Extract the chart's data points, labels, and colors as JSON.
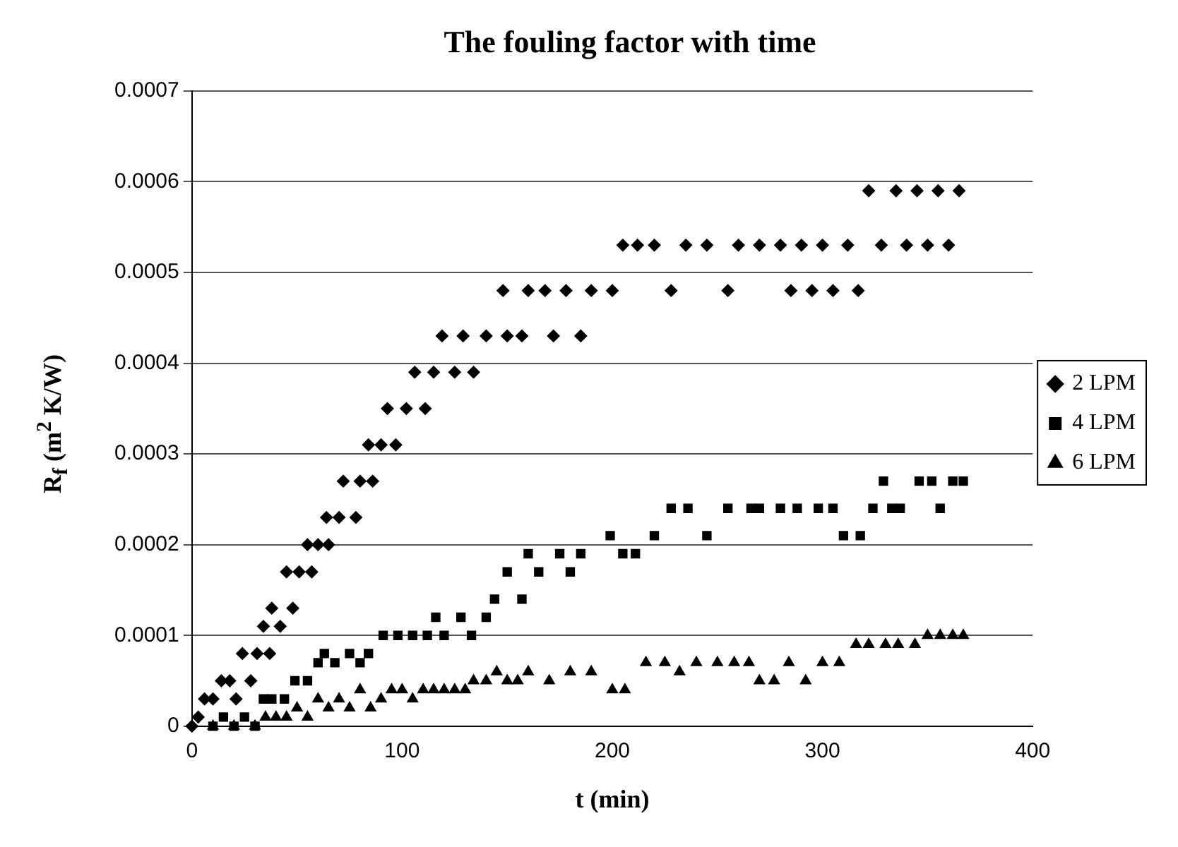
{
  "chart_data": {
    "type": "scatter",
    "title": "The fouling factor with time",
    "xlabel": "t (min)",
    "ylabel": "R$_{f}$ (m$^{2}$ K/W)",
    "xlim": [
      0,
      400
    ],
    "xticks": [
      0,
      100,
      200,
      300,
      400
    ],
    "ylim": [
      0,
      0.0007
    ],
    "yticks": [
      0,
      0.0001,
      0.0002,
      0.0003,
      0.0004,
      0.0005,
      0.0006,
      0.0007
    ],
    "grid": "y",
    "legend": "right",
    "series": [
      {
        "name": "2 LPM",
        "color": "#000000",
        "marker": "diamond",
        "x": [
          0,
          3,
          6,
          10,
          14,
          18,
          21,
          24,
          28,
          31,
          34,
          37,
          38,
          42,
          45,
          48,
          51,
          55,
          57,
          60,
          64,
          65,
          70,
          72,
          78,
          80,
          84,
          86,
          90,
          93,
          97,
          102,
          106,
          111,
          115,
          119,
          125,
          129,
          134,
          140,
          148,
          150,
          157,
          160,
          168,
          172,
          178,
          185,
          190,
          200,
          205,
          212,
          220,
          228,
          235,
          245,
          255,
          260,
          270,
          280,
          285,
          290,
          295,
          300,
          305,
          312,
          317,
          322,
          328,
          335,
          340,
          345,
          350,
          355,
          360,
          365
        ],
        "values": [
          0,
          1e-05,
          3e-05,
          3e-05,
          5e-05,
          5e-05,
          3e-05,
          8e-05,
          5e-05,
          8e-05,
          0.00011,
          8e-05,
          0.00013,
          0.00011,
          0.00017,
          0.00013,
          0.00017,
          0.0002,
          0.00017,
          0.0002,
          0.00023,
          0.0002,
          0.00023,
          0.00027,
          0.00023,
          0.00027,
          0.00031,
          0.00027,
          0.00031,
          0.00035,
          0.00031,
          0.00035,
          0.00039,
          0.00035,
          0.00039,
          0.00043,
          0.00039,
          0.00043,
          0.00039,
          0.00043,
          0.00048,
          0.00043,
          0.00043,
          0.00048,
          0.00048,
          0.00043,
          0.00048,
          0.00043,
          0.00048,
          0.00048,
          0.00053,
          0.00053,
          0.00053,
          0.00048,
          0.00053,
          0.00053,
          0.00048,
          0.00053,
          0.00053,
          0.00053,
          0.00048,
          0.00053,
          0.00048,
          0.00053,
          0.00048,
          0.00053,
          0.00048,
          0.00059,
          0.00053,
          0.00059,
          0.00053,
          0.00059,
          0.00053,
          0.00059,
          0.00053,
          0.00059
        ]
      },
      {
        "name": "4 LPM",
        "color": "#000000",
        "marker": "square",
        "x": [
          10,
          15,
          20,
          25,
          30,
          34,
          38,
          44,
          49,
          55,
          60,
          63,
          68,
          75,
          80,
          84,
          91,
          98,
          105,
          112,
          116,
          120,
          128,
          133,
          140,
          144,
          150,
          157,
          160,
          165,
          175,
          180,
          185,
          199,
          205,
          211,
          220,
          228,
          236,
          245,
          255,
          266,
          270,
          280,
          288,
          298,
          305,
          310,
          318,
          324,
          329,
          333,
          337,
          346,
          352,
          356,
          362,
          367
        ],
        "values": [
          0,
          1e-05,
          0,
          1e-05,
          0,
          3e-05,
          3e-05,
          3e-05,
          5e-05,
          5e-05,
          7e-05,
          8e-05,
          7e-05,
          8e-05,
          7e-05,
          8e-05,
          0.0001,
          0.0001,
          0.0001,
          0.0001,
          0.00012,
          0.0001,
          0.00012,
          0.0001,
          0.00012,
          0.00014,
          0.00017,
          0.00014,
          0.00019,
          0.00017,
          0.00019,
          0.00017,
          0.00019,
          0.00021,
          0.00019,
          0.00019,
          0.00021,
          0.00024,
          0.00024,
          0.00021,
          0.00024,
          0.00024,
          0.00024,
          0.00024,
          0.00024,
          0.00024,
          0.00024,
          0.00021,
          0.00021,
          0.00024,
          0.00027,
          0.00024,
          0.00024,
          0.00027,
          0.00027,
          0.00024,
          0.00027,
          0.00027
        ]
      },
      {
        "name": "6 LPM",
        "color": "#000000",
        "marker": "triangle",
        "x": [
          10,
          20,
          30,
          35,
          40,
          45,
          50,
          55,
          60,
          65,
          70,
          75,
          80,
          85,
          90,
          95,
          100,
          105,
          110,
          115,
          120,
          125,
          130,
          134,
          140,
          145,
          150,
          155,
          160,
          170,
          180,
          190,
          200,
          206,
          216,
          225,
          232,
          240,
          250,
          258,
          265,
          270,
          277,
          284,
          292,
          300,
          308,
          316,
          322,
          330,
          336,
          344,
          350,
          356,
          362,
          367
        ],
        "values": [
          0,
          0,
          0,
          1e-05,
          1e-05,
          1e-05,
          2e-05,
          1e-05,
          3e-05,
          2e-05,
          3e-05,
          2e-05,
          4e-05,
          2e-05,
          3e-05,
          4e-05,
          4e-05,
          3e-05,
          4e-05,
          4e-05,
          4e-05,
          4e-05,
          4e-05,
          5e-05,
          5e-05,
          6e-05,
          5e-05,
          5e-05,
          6e-05,
          5e-05,
          6e-05,
          6e-05,
          4e-05,
          4e-05,
          7e-05,
          7e-05,
          6e-05,
          7e-05,
          7e-05,
          7e-05,
          7e-05,
          5e-05,
          5e-05,
          7e-05,
          5e-05,
          7e-05,
          7e-05,
          9e-05,
          9e-05,
          9e-05,
          9e-05,
          9e-05,
          0.0001,
          0.0001,
          0.0001,
          0.0001
        ]
      }
    ]
  }
}
